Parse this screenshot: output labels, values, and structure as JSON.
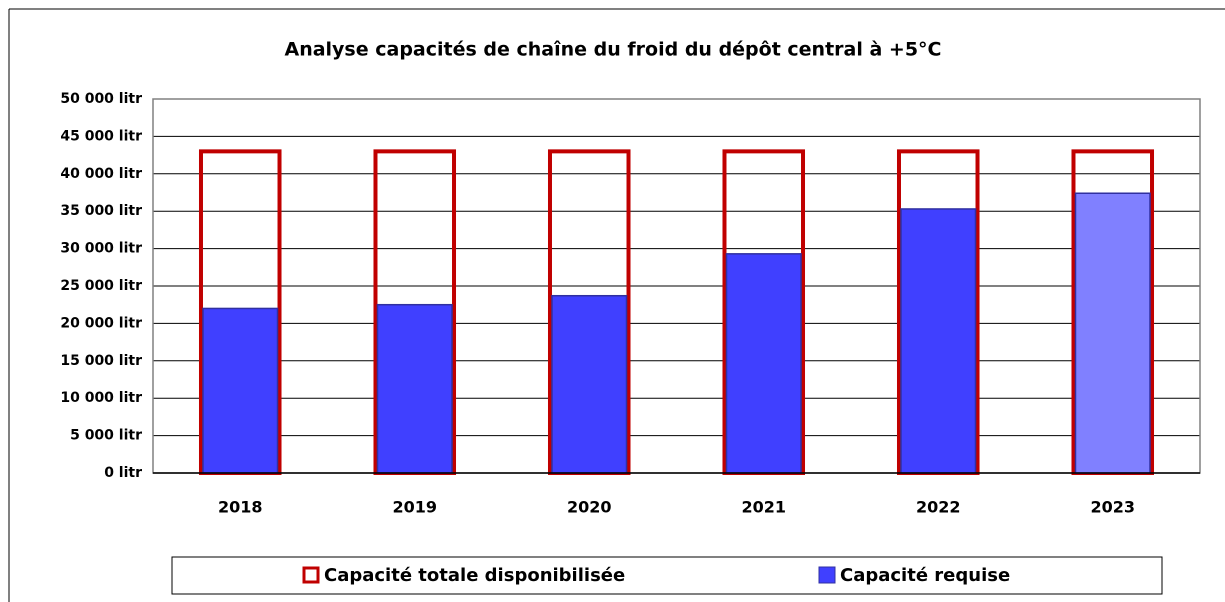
{
  "chart_data": {
    "type": "bar",
    "title": "Analyse capacités de chaîne du froid du dépôt central à +5°C",
    "categories": [
      "2018",
      "2019",
      "2020",
      "2021",
      "2022",
      "2023"
    ],
    "series": [
      {
        "name": "Capacité totale disponibilisée",
        "color": "#c00000",
        "style": "outline",
        "values": [
          43000,
          43000,
          43000,
          43000,
          43000,
          43000
        ]
      },
      {
        "name": "Capacité requise",
        "color": "#4040ff",
        "colors": [
          "#4040ff",
          "#4040ff",
          "#4040ff",
          "#4040ff",
          "#4040ff",
          "#8080ff"
        ],
        "style": "filled",
        "values": [
          22000,
          22500,
          23700,
          29300,
          35300,
          37400
        ]
      }
    ],
    "ylim": [
      0,
      50000
    ],
    "yticks": [
      {
        "value": 0,
        "label": "0 litr"
      },
      {
        "value": 5000,
        "label": "5 000 litr"
      },
      {
        "value": 10000,
        "label": "10 000 litr"
      },
      {
        "value": 15000,
        "label": "15 000 litr"
      },
      {
        "value": 20000,
        "label": "20 000 litr"
      },
      {
        "value": 25000,
        "label": "25 000 litr"
      },
      {
        "value": 30000,
        "label": "30 000 litr"
      },
      {
        "value": 35000,
        "label": "35 000 litr"
      },
      {
        "value": 40000,
        "label": "40 000 litr"
      },
      {
        "value": 45000,
        "label": "45 000 litr"
      },
      {
        "value": 50000,
        "label": "50 000 litr"
      }
    ],
    "grid": true,
    "legend": "bottom"
  }
}
